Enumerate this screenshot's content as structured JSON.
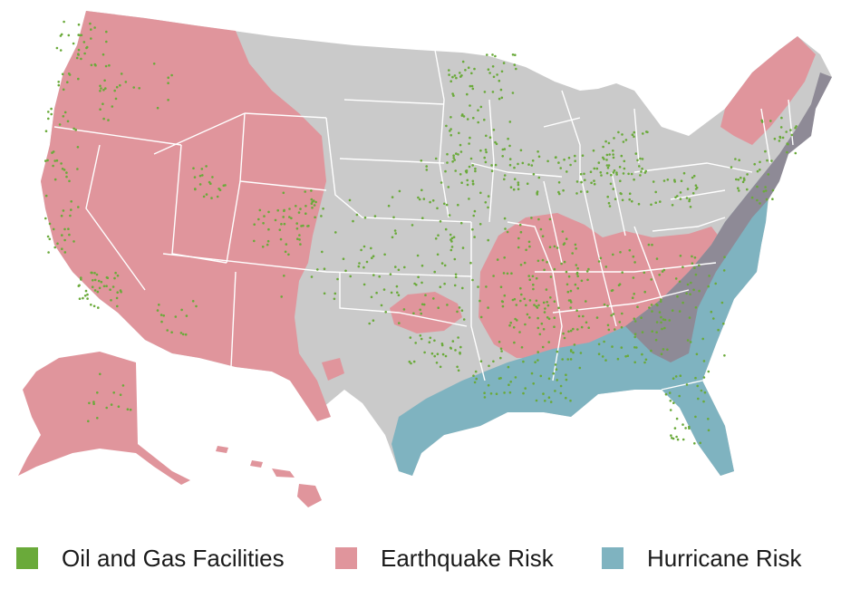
{
  "colors": {
    "land": "#cacaca",
    "state_border": "#ffffff",
    "oil_gas": "#6aaa3a",
    "earthquake": "#e0959c",
    "hurricane": "#7fb3c0",
    "background": "#ffffff"
  },
  "legend": [
    {
      "key": "oil_gas",
      "label": "Oil and Gas Facilities",
      "color": "#6aaa3a"
    },
    {
      "key": "earthquake",
      "label": "Earthquake Risk",
      "color": "#e0959c"
    },
    {
      "key": "hurricane",
      "label": "Hurricane Risk",
      "color": "#7fb3c0"
    }
  ]
}
